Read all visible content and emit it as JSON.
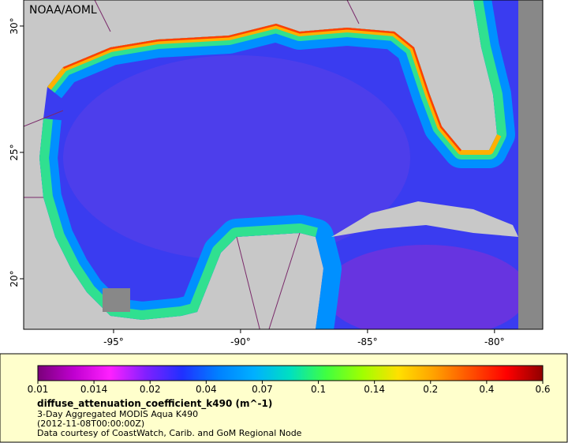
{
  "map": {
    "credit": "NOAA/AOML",
    "xlim": [
      -98.54,
      -78.1
    ],
    "ylim": [
      18.0,
      31.03
    ],
    "xticks": [
      {
        "value": -95,
        "label": "-95°"
      },
      {
        "value": -90,
        "label": "-90°"
      },
      {
        "value": -85,
        "label": "-85°"
      },
      {
        "value": -80,
        "label": "-80°"
      }
    ],
    "yticks": [
      {
        "value": 30,
        "label": "30°"
      },
      {
        "value": 25,
        "label": "25°"
      },
      {
        "value": 20,
        "label": "20°"
      }
    ],
    "colorbar": {
      "ticks": [
        0.01,
        0.014,
        0.02,
        0.04,
        0.07,
        0.1,
        0.14,
        0.2,
        0.4,
        0.6
      ],
      "colors": [
        "#7a007a",
        "#c000d0",
        "#ff20ff",
        "#8020ff",
        "#2030ff",
        "#0080ff",
        "#00b0ff",
        "#00e0c0",
        "#40ff40",
        "#a0ff00",
        "#ffe000",
        "#ffa000",
        "#ff5000",
        "#ff0000",
        "#900000"
      ]
    },
    "variable": "diffuse_attenuation_coefficient_k490 (m^-1)",
    "description": "3-Day Aggregated MODIS Aqua K490",
    "time": "(2012-11-08T00:00:00Z)",
    "source": "Data courtesy of CoastWatch, Carib. and GoM Regional Node"
  }
}
